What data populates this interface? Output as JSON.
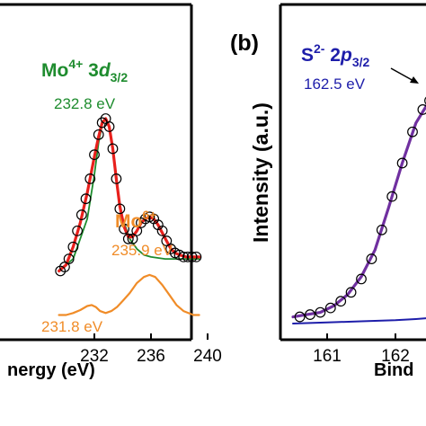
{
  "colors": {
    "green": "#1e8c2e",
    "orange": "#f08c28",
    "red": "#e8201c",
    "blue": "#1e1eaa",
    "purple": "#7030a0",
    "black": "#000000"
  },
  "chart_data": [
    {
      "panel": "a",
      "type": "line",
      "xlabel_visible": "nergy (eV)",
      "xlim": [
        229.5,
        240
      ],
      "xticks": [
        232,
        236,
        240
      ],
      "xtick_labels": [
        "232",
        "236",
        "240"
      ],
      "annotations": {
        "mo4_prefix": "Mo",
        "mo4_sup": "4+",
        "mo4_mid": " 3",
        "mo4_italic": "d",
        "mo4_sub": "3/2",
        "mo4_energy": "232.8 eV",
        "mo6_prefix": "Mo",
        "mo6_sup": "6+",
        "mo6_energy": "235.9 eV",
        "low_energy": "231.8 eV"
      },
      "series": [
        {
          "component": "data",
          "style": "open-circles",
          "x": [
            229.6,
            229.9,
            230.2,
            230.5,
            230.8,
            231.1,
            231.4,
            231.7,
            232.0,
            232.3,
            232.55,
            232.8,
            233.05,
            233.3,
            233.55,
            233.8,
            234.1,
            234.4,
            234.7,
            235.0,
            235.3,
            235.6,
            235.9,
            236.2,
            236.5,
            236.8,
            237.1,
            237.4,
            237.7,
            238.0,
            238.3,
            238.6,
            238.9,
            239.2
          ],
          "y": [
            0.24,
            0.26,
            0.3,
            0.36,
            0.44,
            0.52,
            0.6,
            0.7,
            0.82,
            0.92,
            0.98,
            1.0,
            0.96,
            0.85,
            0.7,
            0.55,
            0.45,
            0.4,
            0.4,
            0.44,
            0.48,
            0.5,
            0.51,
            0.5,
            0.47,
            0.44,
            0.39,
            0.35,
            0.33,
            0.32,
            0.31,
            0.31,
            0.31,
            0.31
          ]
        },
        {
          "component": "envelope",
          "style": "red-line",
          "x": [
            229.5,
            230.0,
            230.5,
            231.0,
            231.5,
            232.0,
            232.3,
            232.55,
            232.8,
            233.05,
            233.3,
            233.55,
            233.8,
            234.1,
            234.4,
            234.7,
            235.0,
            235.3,
            235.6,
            235.9,
            236.2,
            236.5,
            236.8,
            237.1,
            237.4,
            237.7,
            238.0,
            238.5,
            239.0,
            239.4
          ],
          "y": [
            0.24,
            0.27,
            0.36,
            0.48,
            0.63,
            0.81,
            0.91,
            0.98,
            1.0,
            0.96,
            0.85,
            0.7,
            0.56,
            0.46,
            0.41,
            0.41,
            0.44,
            0.48,
            0.5,
            0.51,
            0.5,
            0.47,
            0.43,
            0.39,
            0.35,
            0.33,
            0.32,
            0.31,
            0.31,
            0.31
          ]
        },
        {
          "component": "Mo4+ 3d3/2",
          "style": "green-line",
          "x": [
            229.5,
            230.5,
            231.5,
            232.0,
            232.3,
            232.55,
            232.8,
            233.05,
            233.3,
            233.6,
            234.0,
            234.5,
            235.0,
            235.5,
            236.0,
            237.0,
            238.0,
            239.4
          ],
          "y": [
            0.24,
            0.3,
            0.5,
            0.72,
            0.88,
            0.97,
            1.0,
            0.96,
            0.84,
            0.66,
            0.5,
            0.4,
            0.35,
            0.32,
            0.31,
            0.3,
            0.3,
            0.3
          ]
        },
        {
          "component": "Mo6+",
          "style": "orange-line",
          "x": [
            229.5,
            230.0,
            230.5,
            231.0,
            231.5,
            231.8,
            232.1,
            232.4,
            232.8,
            233.2,
            233.6,
            234.0,
            234.5,
            235.0,
            235.5,
            235.9,
            236.3,
            236.8,
            237.3,
            237.8,
            238.3,
            239.0,
            239.4
          ],
          "y": [
            0.02,
            0.02,
            0.03,
            0.045,
            0.065,
            0.07,
            0.06,
            0.04,
            0.03,
            0.04,
            0.06,
            0.09,
            0.13,
            0.18,
            0.21,
            0.22,
            0.21,
            0.17,
            0.12,
            0.07,
            0.04,
            0.02,
            0.02
          ]
        }
      ]
    },
    {
      "panel": "b",
      "panel_label": "(b)",
      "type": "line",
      "ylabel": "Intensity (a.u.)",
      "xlabel_visible": "Bind",
      "xlim": [
        160.5,
        162.75
      ],
      "xticks": [
        161,
        162
      ],
      "xtick_labels": [
        "161",
        "162"
      ],
      "annotations": {
        "s_prefix": "S",
        "s_sup": "2-",
        "s_mid": " 2",
        "s_italic": "p",
        "s_sub": "3/2",
        "s_energy": "162.5 eV"
      },
      "series": [
        {
          "component": "data",
          "style": "open-circles",
          "x": [
            160.6,
            160.75,
            160.9,
            161.05,
            161.2,
            161.35,
            161.5,
            161.65,
            161.8,
            161.95,
            162.1,
            162.25,
            162.4,
            162.5
          ],
          "y": [
            0.03,
            0.04,
            0.05,
            0.07,
            0.1,
            0.14,
            0.2,
            0.29,
            0.42,
            0.57,
            0.72,
            0.86,
            0.96,
            1.0
          ]
        },
        {
          "component": "S2- 2p3/2",
          "style": "purple-line",
          "x": [
            160.5,
            160.7,
            160.9,
            161.1,
            161.3,
            161.5,
            161.7,
            161.9,
            162.1,
            162.3,
            162.5,
            162.6
          ],
          "y": [
            0.03,
            0.04,
            0.05,
            0.08,
            0.13,
            0.21,
            0.33,
            0.52,
            0.72,
            0.9,
            1.0,
            1.02
          ]
        },
        {
          "component": "baseline",
          "style": "blue-line",
          "x": [
            160.5,
            161.0,
            161.5,
            162.0,
            162.3,
            162.5,
            162.6
          ],
          "y": [
            0.0,
            0.005,
            0.01,
            0.015,
            0.02,
            0.025,
            0.03
          ]
        }
      ]
    }
  ]
}
